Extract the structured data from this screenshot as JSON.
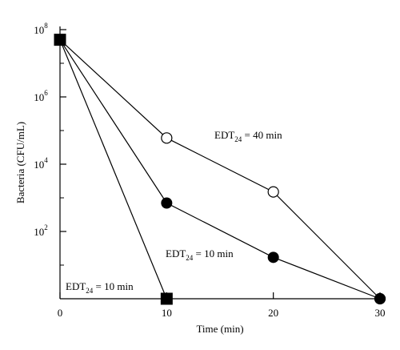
{
  "chart_data": {
    "type": "line",
    "title": "",
    "xlabel": "Time (min)",
    "ylabel": "Bacteria (CFU/mL)",
    "xlim": [
      0,
      30
    ],
    "y_scale": "log",
    "ylim": [
      1,
      100000000
    ],
    "x_ticks": [
      {
        "value": 0,
        "label": "0"
      },
      {
        "value": 10,
        "label": "10"
      },
      {
        "value": 20,
        "label": "20"
      },
      {
        "value": 30,
        "label": "30"
      }
    ],
    "y_ticks": [
      {
        "value": 100,
        "base": "10",
        "exp": "2"
      },
      {
        "value": 10000,
        "base": "10",
        "exp": "4"
      },
      {
        "value": 1000000,
        "base": "10",
        "exp": "6"
      },
      {
        "value": 100000000,
        "base": "10",
        "exp": "8"
      }
    ],
    "grid": false,
    "series": [
      {
        "marker": "open-circle",
        "x": [
          0,
          10,
          20,
          30
        ],
        "y": [
          50000000,
          60000,
          1500,
          1
        ],
        "annotation": {
          "prefix": "EDT",
          "sub": "24",
          "suffix": " = 40 min"
        }
      },
      {
        "marker": "filled-circle",
        "x": [
          0,
          10,
          20,
          30
        ],
        "y": [
          50000000,
          700,
          17,
          1
        ],
        "annotation": {
          "prefix": "EDT",
          "sub": "24",
          "suffix": " = 10 min"
        }
      },
      {
        "marker": "filled-square",
        "x": [
          0,
          10
        ],
        "y": [
          50000000,
          1
        ],
        "annotation": {
          "prefix": "EDT",
          "sub": "24",
          "suffix": " = 10 min"
        }
      }
    ],
    "colors": {
      "line": "#000000",
      "marker_fill": "#000000",
      "open_fill": "#ffffff"
    }
  }
}
